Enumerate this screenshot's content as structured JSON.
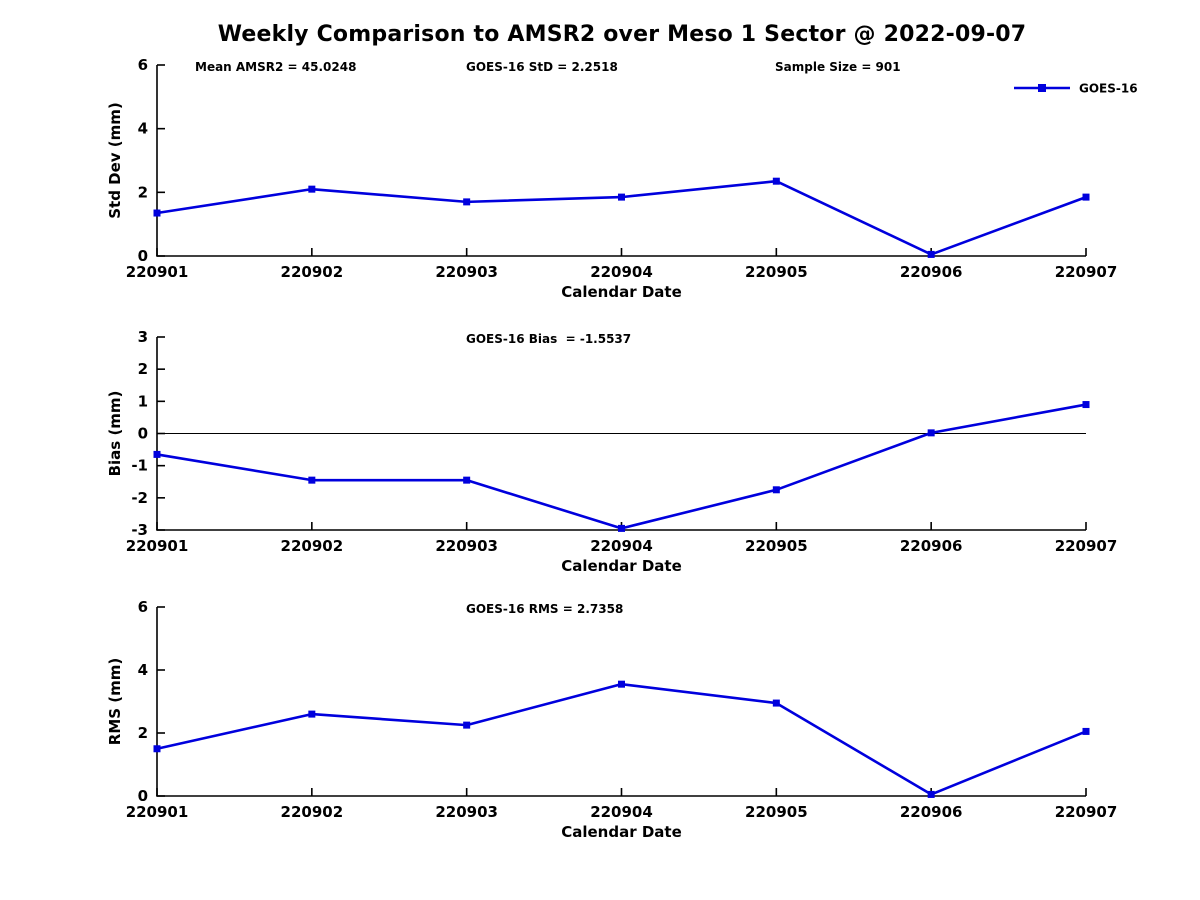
{
  "title": "Weekly Comparison to AMSR2 over Meso 1 Sector @ 2022-09-07",
  "accent_color": "#0000dd",
  "chart_data": [
    {
      "type": "line",
      "id": "std-dev",
      "title": "",
      "ylabel": "Std Dev (mm)",
      "xlabel": "Calendar Date",
      "categories": [
        "220901",
        "220902",
        "220903",
        "220904",
        "220905",
        "220906",
        "220907"
      ],
      "series": [
        {
          "name": "GOES-16",
          "color": "#0000dd",
          "marker": "square",
          "values": [
            1.35,
            2.1,
            1.7,
            1.85,
            2.35,
            0.05,
            1.85
          ]
        }
      ],
      "ylim": [
        0,
        6
      ],
      "yticks": [
        0,
        2,
        4,
        6
      ],
      "grid": false,
      "zero_line": false,
      "annotations": [
        "Mean AMSR2 = 45.0248",
        "GOES-16 StD = 2.2518",
        "Sample Size = 901"
      ],
      "legend": {
        "visible": true,
        "label": "GOES-16",
        "position": "top-right"
      }
    },
    {
      "type": "line",
      "id": "bias",
      "title": "",
      "ylabel": "Bias (mm)",
      "xlabel": "Calendar Date",
      "categories": [
        "220901",
        "220902",
        "220903",
        "220904",
        "220905",
        "220906",
        "220907"
      ],
      "series": [
        {
          "name": "GOES-16",
          "color": "#0000dd",
          "marker": "square",
          "values": [
            -0.65,
            -1.45,
            -1.45,
            -2.95,
            -1.75,
            0.02,
            0.9
          ]
        }
      ],
      "ylim": [
        -3,
        3
      ],
      "yticks": [
        -3,
        -2,
        -1,
        0,
        1,
        2,
        3
      ],
      "grid": false,
      "zero_line": true,
      "annotations": [
        "GOES-16 Bias  = -1.5537"
      ],
      "legend": {
        "visible": false
      }
    },
    {
      "type": "line",
      "id": "rms",
      "title": "",
      "ylabel": "RMS (mm)",
      "xlabel": "Calendar Date",
      "categories": [
        "220901",
        "220902",
        "220903",
        "220904",
        "220905",
        "220906",
        "220907"
      ],
      "series": [
        {
          "name": "GOES-16",
          "color": "#0000dd",
          "marker": "square",
          "values": [
            1.5,
            2.6,
            2.25,
            3.55,
            2.95,
            0.05,
            2.05
          ]
        }
      ],
      "ylim": [
        0,
        6
      ],
      "yticks": [
        0,
        2,
        4,
        6
      ],
      "grid": false,
      "zero_line": false,
      "annotations": [
        "GOES-16 RMS = 2.7358"
      ],
      "legend": {
        "visible": false
      }
    }
  ]
}
